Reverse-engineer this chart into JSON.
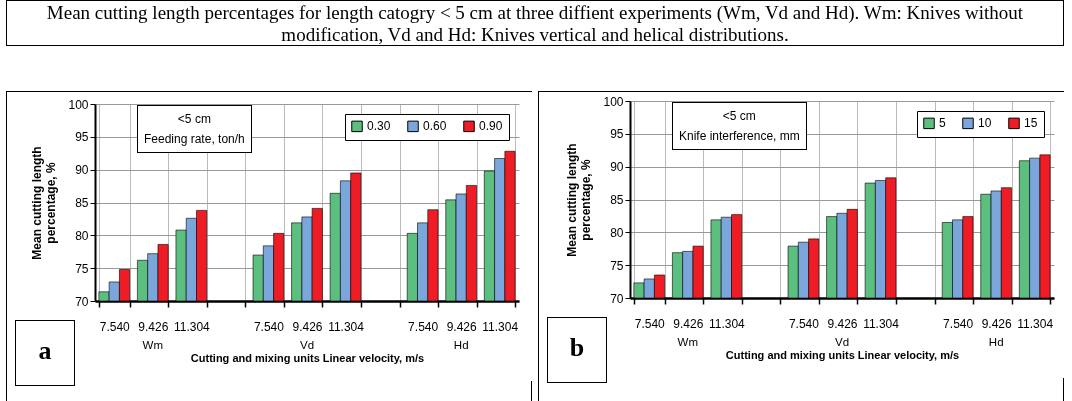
{
  "chart_data": [
    {
      "type": "bar",
      "title": "Mean cutting length percentages for length catogry < 5 cm at three diffient experiments (Wm, Vd and Hd). Wm: Knives without modification, Vd and  Hd: Knives vertical and helical distributions.",
      "xlabel": "Cutting and mixing units Linear velocity, m/s",
      "ylabel": "Mean cutting length percentage, %",
      "annotations": [
        "<5 cm",
        "Feeding rate, ton/h",
        "Wm",
        "Vd",
        "Hd",
        "a"
      ],
      "categories": [
        "7.540",
        "9.426",
        "11.304",
        null,
        "7.540",
        "9.426",
        "11.304",
        null,
        "7.540",
        "9.426",
        "11.304"
      ],
      "series": [
        {
          "name": "0.30",
          "color": "#5cbf80",
          "values": [
            71.4,
            76.2,
            80.8,
            null,
            77.0,
            81.9,
            86.4,
            null,
            80.3,
            85.4,
            89.8
          ]
        },
        {
          "name": "0.60",
          "color": "#7aa6dc",
          "values": [
            72.9,
            77.2,
            82.6,
            null,
            78.4,
            82.8,
            88.3,
            null,
            81.9,
            86.3,
            91.7
          ]
        },
        {
          "name": "0.90",
          "color": "#ee1c24",
          "values": [
            74.8,
            78.6,
            83.8,
            null,
            80.3,
            84.1,
            89.5,
            null,
            83.9,
            87.6,
            92.8
          ]
        }
      ],
      "ylim": [
        70,
        100
      ],
      "yticks": [
        70,
        75,
        80,
        85,
        90,
        95,
        100
      ],
      "grid": true,
      "legend": "top right"
    },
    {
      "type": "bar",
      "xlabel": "Cutting and mixing units Linear velocity, m/s",
      "ylabel": "Mean cutting length percentage, %",
      "annotations": [
        "<5 cm",
        "Knife interference, mm",
        "Wm",
        "Vd",
        "Hd",
        "b"
      ],
      "categories": [
        "7.540",
        "9.426",
        "11.304",
        null,
        "7.540",
        "9.426",
        "11.304",
        null,
        "7.540",
        "9.426",
        "11.304"
      ],
      "series": [
        {
          "name": "5",
          "color": "#5cbf80",
          "values": [
            72.3,
            76.9,
            81.9,
            null,
            77.9,
            82.4,
            87.5,
            null,
            81.5,
            85.8,
            90.9
          ]
        },
        {
          "name": "10",
          "color": "#7aa6dc",
          "values": [
            72.9,
            77.1,
            82.3,
            null,
            78.5,
            82.9,
            87.9,
            null,
            81.9,
            86.3,
            91.3
          ]
        },
        {
          "name": "15",
          "color": "#ee1c24",
          "values": [
            73.5,
            77.9,
            82.7,
            null,
            79.0,
            83.5,
            88.3,
            null,
            82.4,
            86.8,
            91.8
          ]
        }
      ],
      "ylim": [
        70,
        100
      ],
      "yticks": [
        70,
        75,
        80,
        85,
        90,
        95,
        100
      ],
      "grid": true,
      "legend": "top right"
    }
  ]
}
